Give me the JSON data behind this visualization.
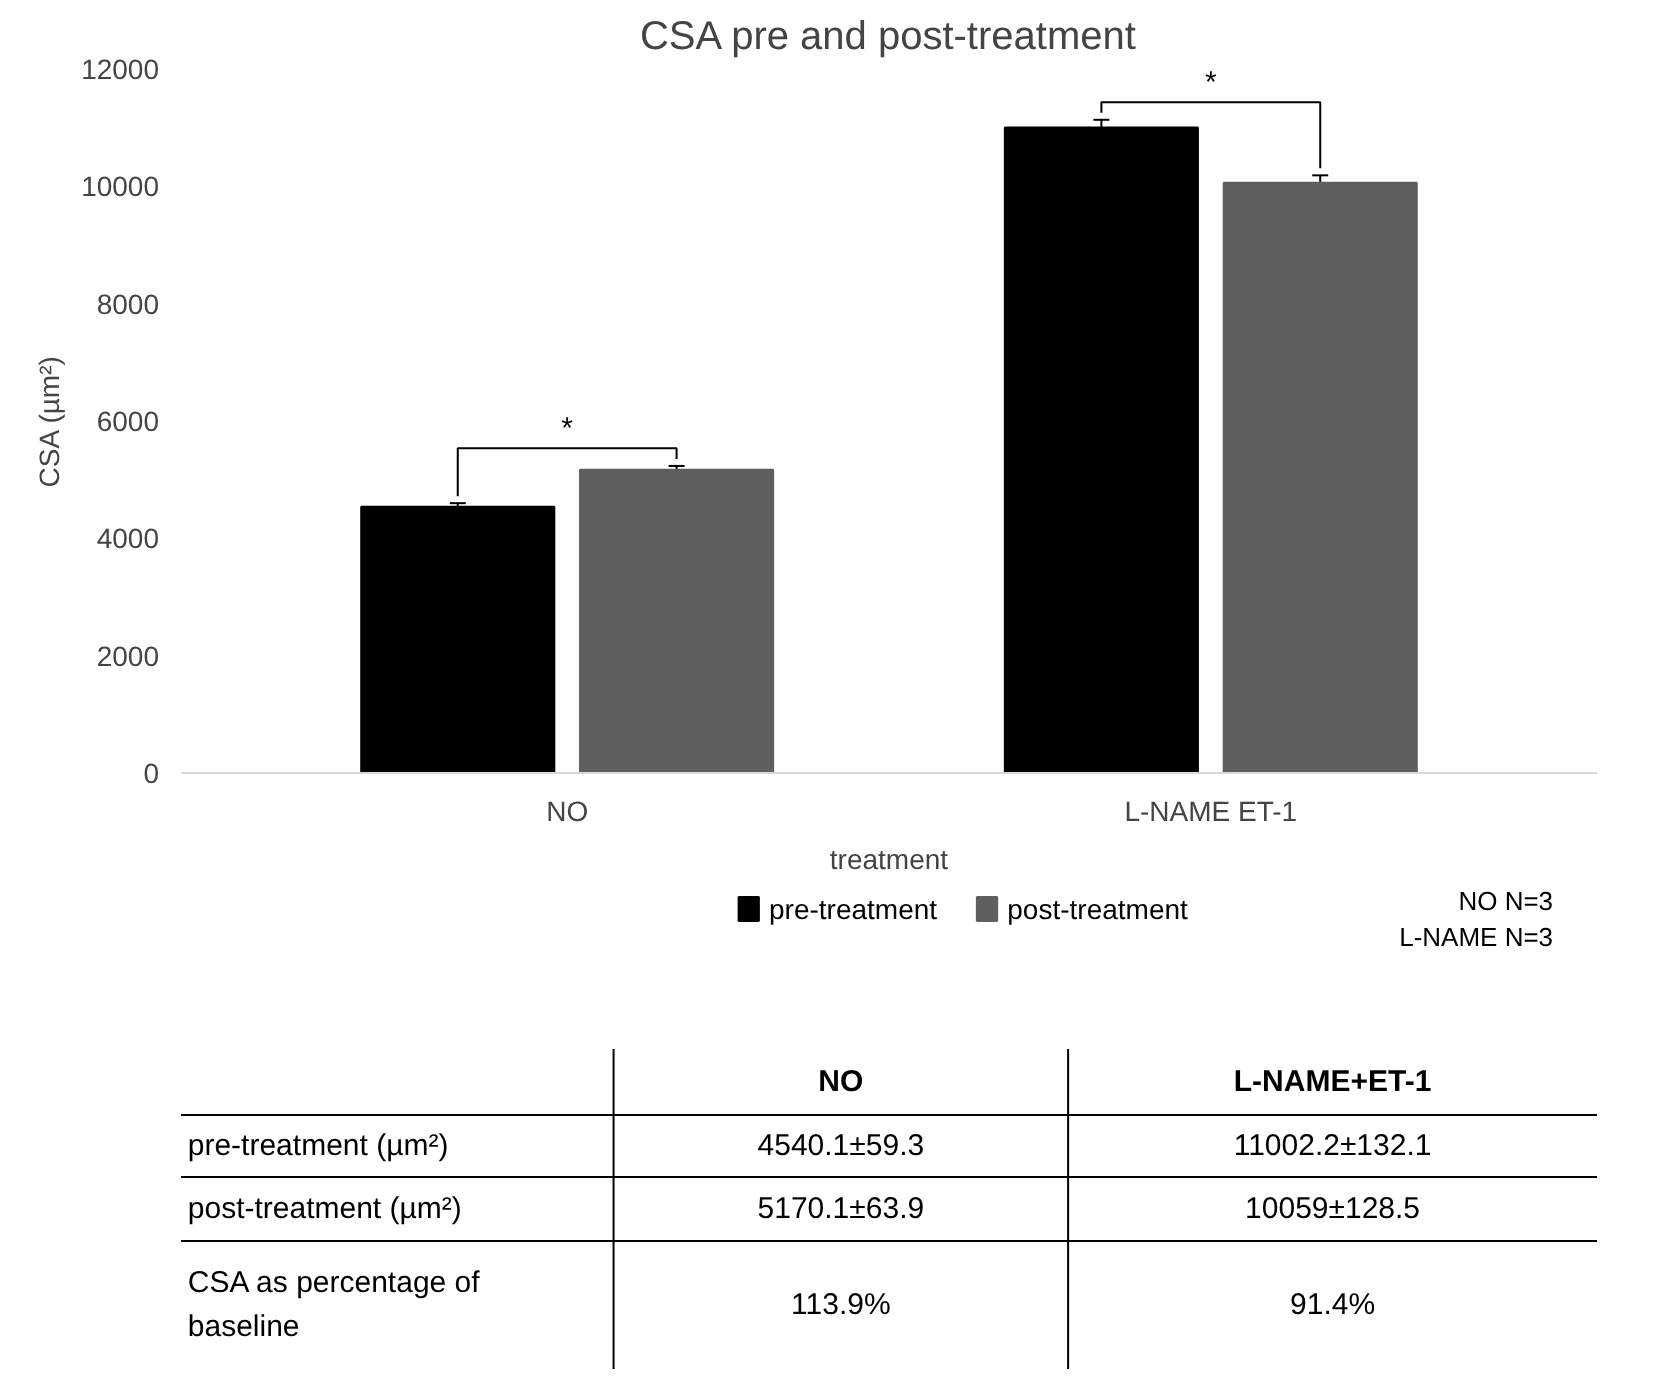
{
  "chart_data": {
    "type": "bar",
    "title": "CSA pre and post-treatment",
    "xlabel": "treatment",
    "ylabel": "CSA (µm²)",
    "categories": [
      "NO",
      "L-NAME ET-1"
    ],
    "series": [
      {
        "name": "pre-treatment",
        "color": "#000000",
        "values": [
          4540.1,
          11002.2
        ],
        "errors": [
          59.3,
          132.1
        ],
        "value_labels": [
          "4540.1±59.3",
          "11002.2±132.1"
        ]
      },
      {
        "name": "post-treatment",
        "color": "#5f5f5f",
        "values": [
          5170.1,
          10059
        ],
        "errors": [
          63.9,
          128.5
        ],
        "value_labels": [
          "5170.1±63.9",
          "10059±128.5"
        ]
      }
    ],
    "ylim": [
      0,
      12000
    ],
    "yticks": [
      0,
      2000,
      4000,
      6000,
      8000,
      10000,
      12000
    ],
    "grid": false,
    "legend": "bottom",
    "annotations": [
      "*",
      "*",
      "NO N=3",
      "L-NAME N=3",
      "NO",
      "L-NAME+ET-1",
      "pre-treatment (µm²)",
      "post-treatment (µm²)",
      "CSA as percentage of baseline",
      "113.9%",
      "91.4%"
    ]
  }
}
